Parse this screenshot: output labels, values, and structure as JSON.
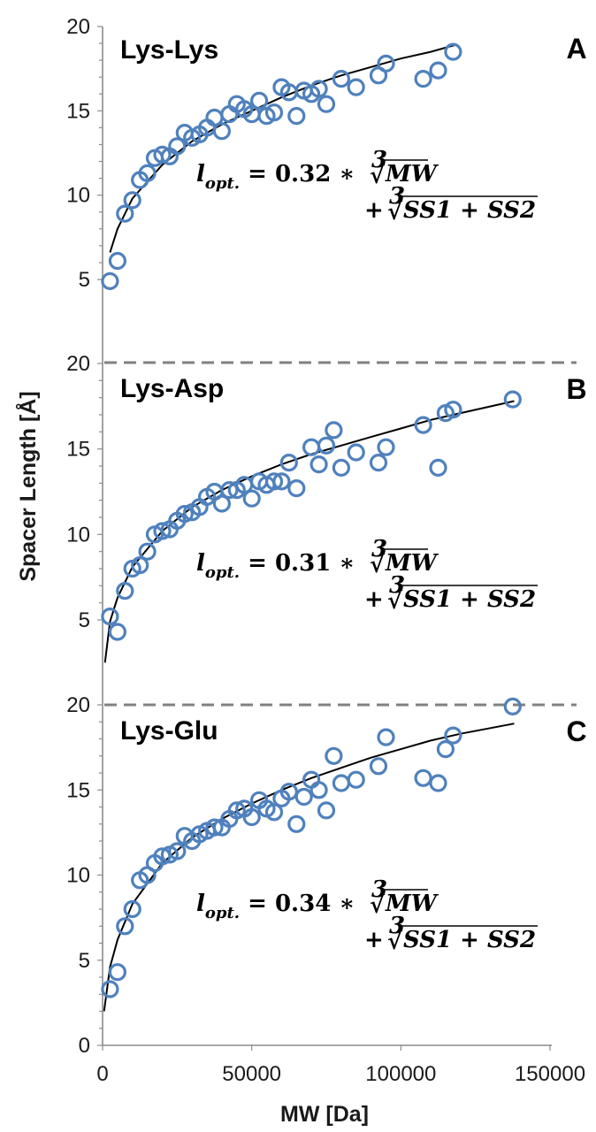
{
  "chart_data": {
    "type": "scatter",
    "ylabel": "Spacer Length [Å]",
    "xlabel": "MW [Da]",
    "xlim": [
      0,
      150000
    ],
    "x_ticks": [
      "0",
      "50000",
      "100000",
      "150000"
    ],
    "grid": false,
    "panels": [
      {
        "letter": "A",
        "title": "Lys-Lys",
        "ylim": [
          5,
          20
        ],
        "y_ticks": [
          "5",
          "10",
          "15",
          "20"
        ],
        "fit_coef": 0.32,
        "eq": {
          "lhs": "l",
          "sub": "opt.",
          "mid": " = 0.32 ∗ ",
          "index": "3",
          "term1": "MW",
          "plus": "+ ",
          "term2": "SS1 + SS2"
        },
        "fit": {
          "x": [
            2500,
            5000,
            10000,
            20000,
            30000,
            40000,
            50000,
            60000,
            70000,
            80000,
            90000,
            100000,
            110000,
            118000
          ],
          "y": [
            6.6,
            8.0,
            9.8,
            11.8,
            13.2,
            14.2,
            15.0,
            15.8,
            16.5,
            17.1,
            17.6,
            18.1,
            18.5,
            18.9
          ]
        },
        "points": [
          [
            2500,
            4.9
          ],
          [
            5000,
            6.1
          ],
          [
            7500,
            8.9
          ],
          [
            10000,
            9.7
          ],
          [
            12500,
            10.9
          ],
          [
            15000,
            11.3
          ],
          [
            17500,
            12.2
          ],
          [
            20000,
            12.4
          ],
          [
            22500,
            12.3
          ],
          [
            25000,
            12.9
          ],
          [
            27500,
            13.7
          ],
          [
            30000,
            13.4
          ],
          [
            32500,
            13.6
          ],
          [
            35000,
            14.0
          ],
          [
            37500,
            14.6
          ],
          [
            40000,
            13.8
          ],
          [
            42500,
            14.8
          ],
          [
            45000,
            15.4
          ],
          [
            47500,
            15.1
          ],
          [
            50000,
            14.8
          ],
          [
            52500,
            15.6
          ],
          [
            55000,
            14.7
          ],
          [
            57500,
            14.9
          ],
          [
            60000,
            16.4
          ],
          [
            62500,
            16.1
          ],
          [
            65000,
            14.7
          ],
          [
            67500,
            16.2
          ],
          [
            70000,
            16.0
          ],
          [
            72500,
            16.3
          ],
          [
            75000,
            15.4
          ],
          [
            80000,
            16.9
          ],
          [
            85000,
            16.4
          ],
          [
            92500,
            17.1
          ],
          [
            95000,
            17.8
          ],
          [
            107500,
            16.9
          ],
          [
            112500,
            17.4
          ],
          [
            117500,
            18.5
          ]
        ]
      },
      {
        "letter": "B",
        "title": "Lys-Asp",
        "ylim": [
          2.5,
          20
        ],
        "y_ticks": [
          "5",
          "10",
          "15",
          "20"
        ],
        "fit_coef": 0.31,
        "eq": {
          "lhs": "l",
          "sub": "opt.",
          "mid": " = 0.31 ∗ ",
          "index": "3",
          "term1": "MW",
          "plus": "+ ",
          "term2": "SS1 + SS2"
        },
        "fit": {
          "x": [
            800,
            2500,
            5000,
            10000,
            20000,
            30000,
            40000,
            50000,
            60000,
            70000,
            80000,
            90000,
            100000,
            110000,
            120000,
            138000
          ],
          "y": [
            2.5,
            4.9,
            6.3,
            8.1,
            10.2,
            11.6,
            12.6,
            13.4,
            14.1,
            14.7,
            15.2,
            15.7,
            16.2,
            16.7,
            17.1,
            17.8
          ]
        },
        "points": [
          [
            2500,
            5.2
          ],
          [
            5000,
            4.3
          ],
          [
            7500,
            6.7
          ],
          [
            10000,
            8.0
          ],
          [
            12500,
            8.2
          ],
          [
            15000,
            9.0
          ],
          [
            17500,
            10.0
          ],
          [
            20000,
            10.2
          ],
          [
            22500,
            10.3
          ],
          [
            25000,
            10.8
          ],
          [
            27500,
            11.2
          ],
          [
            30000,
            11.3
          ],
          [
            32500,
            11.6
          ],
          [
            35000,
            12.2
          ],
          [
            37500,
            12.5
          ],
          [
            40000,
            11.8
          ],
          [
            42500,
            12.6
          ],
          [
            45000,
            12.6
          ],
          [
            47500,
            12.9
          ],
          [
            50000,
            12.1
          ],
          [
            52500,
            13.1
          ],
          [
            55000,
            12.9
          ],
          [
            57500,
            13.1
          ],
          [
            60000,
            13.1
          ],
          [
            62500,
            14.2
          ],
          [
            65000,
            12.7
          ],
          [
            70000,
            15.1
          ],
          [
            72500,
            14.1
          ],
          [
            75000,
            15.2
          ],
          [
            77500,
            16.1
          ],
          [
            80000,
            13.9
          ],
          [
            85000,
            14.8
          ],
          [
            92500,
            14.2
          ],
          [
            95000,
            15.1
          ],
          [
            107500,
            16.4
          ],
          [
            112500,
            13.9
          ],
          [
            115000,
            17.1
          ],
          [
            117500,
            17.3
          ],
          [
            137500,
            17.9
          ]
        ]
      },
      {
        "letter": "C",
        "title": "Lys-Glu",
        "ylim": [
          0,
          20
        ],
        "y_ticks": [
          "0",
          "5",
          "10",
          "15",
          "20"
        ],
        "fit_coef": 0.34,
        "eq": {
          "lhs": "l",
          "sub": "opt.",
          "mid": " = 0.34 ∗ ",
          "index": "3",
          "term1": "MW",
          "plus": "+ ",
          "term2": "SS1 + SS2"
        },
        "fit": {
          "x": [
            500,
            2500,
            5000,
            10000,
            20000,
            30000,
            40000,
            50000,
            60000,
            70000,
            80000,
            90000,
            100000,
            110000,
            120000,
            138000
          ],
          "y": [
            2.0,
            4.6,
            6.2,
            8.3,
            10.7,
            12.2,
            13.3,
            14.2,
            15.0,
            15.7,
            16.3,
            16.9,
            17.4,
            17.9,
            18.3,
            18.9
          ]
        },
        "points": [
          [
            2500,
            3.3
          ],
          [
            5000,
            4.3
          ],
          [
            7500,
            7.0
          ],
          [
            10000,
            8.0
          ],
          [
            12500,
            9.7
          ],
          [
            15000,
            10.0
          ],
          [
            17500,
            10.7
          ],
          [
            20000,
            11.1
          ],
          [
            22500,
            11.2
          ],
          [
            25000,
            11.4
          ],
          [
            27500,
            12.3
          ],
          [
            30000,
            12.0
          ],
          [
            32500,
            12.4
          ],
          [
            35000,
            12.6
          ],
          [
            37500,
            12.8
          ],
          [
            40000,
            12.8
          ],
          [
            42500,
            13.3
          ],
          [
            45000,
            13.8
          ],
          [
            47500,
            13.9
          ],
          [
            50000,
            13.4
          ],
          [
            52500,
            14.4
          ],
          [
            55000,
            13.9
          ],
          [
            57500,
            13.7
          ],
          [
            60000,
            14.5
          ],
          [
            62500,
            14.9
          ],
          [
            65000,
            13.0
          ],
          [
            67500,
            14.6
          ],
          [
            70000,
            15.6
          ],
          [
            72500,
            15.0
          ],
          [
            75000,
            13.8
          ],
          [
            77500,
            17.0
          ],
          [
            80000,
            15.4
          ],
          [
            85000,
            15.6
          ],
          [
            92500,
            16.4
          ],
          [
            95000,
            18.1
          ],
          [
            107500,
            15.7
          ],
          [
            112500,
            15.4
          ],
          [
            115000,
            17.4
          ],
          [
            117500,
            18.2
          ],
          [
            137500,
            19.9
          ]
        ]
      }
    ]
  }
}
